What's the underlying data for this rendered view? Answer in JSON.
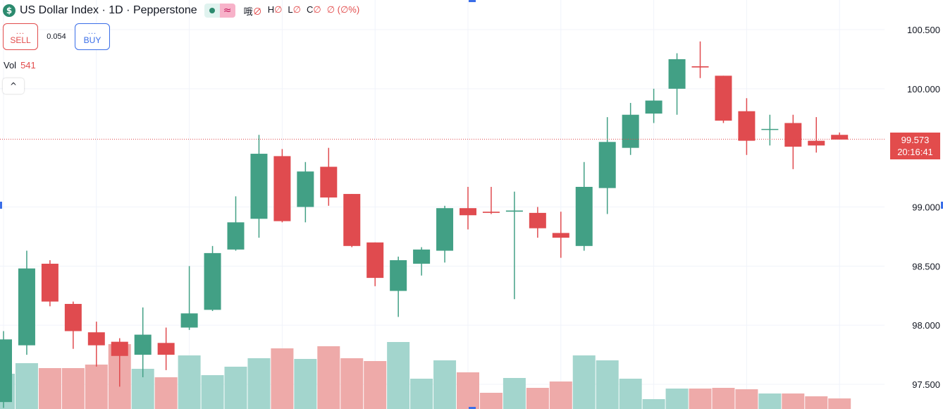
{
  "legend": {
    "symbol_icon": "$",
    "title": "US Dollar Index · 1D · Pepperstone",
    "delayed_icon": "≈",
    "ohlc": {
      "o_label": "哦",
      "h_label": "H",
      "l_label": "L",
      "c_label": "C",
      "o_value": "∅",
      "h_value": "∅",
      "l_value": "∅",
      "c_value": "∅",
      "change": "∅ (∅%)"
    }
  },
  "trade": {
    "sell_label": "SELL",
    "buy_label": "BUY",
    "dots": "...",
    "spread": "0.054"
  },
  "volume": {
    "label": "Vol",
    "value": "541"
  },
  "collapse_icon": "^",
  "last_price": {
    "price": "99.573",
    "countdown": "20:16:41"
  },
  "colors": {
    "up": "#42a085",
    "down": "#e04b4f",
    "up_vol": "#a3d5cd",
    "down_vol": "#eeaaa9",
    "axis_text": "#131722",
    "grid": "#f0f3fa"
  },
  "chart_data": {
    "type": "candlestick",
    "yaxis_ticks": [
      "97.500",
      "98.000",
      "98.500",
      "99.000",
      "100.000",
      "100.500"
    ],
    "ylim": [
      97.4,
      100.6
    ],
    "last_price_line": 99.573,
    "candles": [
      {
        "o": 97.35,
        "h": 97.95,
        "l": 97.3,
        "c": 97.88
      },
      {
        "o": 97.83,
        "h": 98.63,
        "l": 97.75,
        "c": 98.48
      },
      {
        "o": 98.52,
        "h": 98.55,
        "l": 98.16,
        "c": 98.2
      },
      {
        "o": 98.18,
        "h": 98.2,
        "l": 97.8,
        "c": 97.95
      },
      {
        "o": 97.94,
        "h": 98.03,
        "l": 97.65,
        "c": 97.83
      },
      {
        "o": 97.86,
        "h": 97.89,
        "l": 97.48,
        "c": 97.74
      },
      {
        "o": 97.75,
        "h": 98.15,
        "l": 97.56,
        "c": 97.92
      },
      {
        "o": 97.85,
        "h": 97.98,
        "l": 97.62,
        "c": 97.75
      },
      {
        "o": 97.98,
        "h": 98.5,
        "l": 97.96,
        "c": 98.1
      },
      {
        "o": 98.13,
        "h": 98.67,
        "l": 98.12,
        "c": 98.61
      },
      {
        "o": 98.64,
        "h": 99.09,
        "l": 98.63,
        "c": 98.87
      },
      {
        "o": 98.9,
        "h": 99.61,
        "l": 98.74,
        "c": 99.45
      },
      {
        "o": 99.43,
        "h": 99.49,
        "l": 98.87,
        "c": 98.88
      },
      {
        "o": 99.0,
        "h": 99.38,
        "l": 98.87,
        "c": 99.3
      },
      {
        "o": 99.34,
        "h": 99.5,
        "l": 99.01,
        "c": 99.08
      },
      {
        "o": 99.11,
        "h": 99.11,
        "l": 98.66,
        "c": 98.67
      },
      {
        "o": 98.7,
        "h": 98.7,
        "l": 98.33,
        "c": 98.4
      },
      {
        "o": 98.29,
        "h": 98.58,
        "l": 98.07,
        "c": 98.55
      },
      {
        "o": 98.52,
        "h": 98.66,
        "l": 98.42,
        "c": 98.64
      },
      {
        "o": 98.63,
        "h": 99.01,
        "l": 98.53,
        "c": 98.99
      },
      {
        "o": 98.99,
        "h": 99.17,
        "l": 98.81,
        "c": 98.93
      },
      {
        "o": 98.96,
        "h": 99.17,
        "l": 98.94,
        "c": 98.95
      },
      {
        "o": 98.96,
        "h": 99.13,
        "l": 98.22,
        "c": 98.97
      },
      {
        "o": 98.95,
        "h": 99.0,
        "l": 98.74,
        "c": 98.82
      },
      {
        "o": 98.78,
        "h": 98.96,
        "l": 98.57,
        "c": 98.74
      },
      {
        "o": 98.67,
        "h": 99.38,
        "l": 98.63,
        "c": 99.17
      },
      {
        "o": 99.16,
        "h": 99.76,
        "l": 98.94,
        "c": 99.55
      },
      {
        "o": 99.5,
        "h": 99.88,
        "l": 99.44,
        "c": 99.78
      },
      {
        "o": 99.79,
        "h": 100.0,
        "l": 99.71,
        "c": 99.9
      },
      {
        "o": 100.0,
        "h": 100.3,
        "l": 99.78,
        "c": 100.25
      },
      {
        "o": 100.19,
        "h": 100.4,
        "l": 100.09,
        "c": 100.18
      },
      {
        "o": 100.11,
        "h": 100.11,
        "l": 99.71,
        "c": 99.73
      },
      {
        "o": 99.81,
        "h": 99.92,
        "l": 99.44,
        "c": 99.56
      },
      {
        "o": 99.66,
        "h": 99.78,
        "l": 99.52,
        "c": 99.66
      },
      {
        "o": 99.71,
        "h": 99.78,
        "l": 99.32,
        "c": 99.51
      },
      {
        "o": 99.56,
        "h": 99.76,
        "l": 99.46,
        "c": 99.52
      },
      {
        "o": 99.61,
        "h": 99.63,
        "l": 99.57,
        "c": 99.57
      }
    ],
    "volumes": [
      0.5,
      0.65,
      0.58,
      0.58,
      0.63,
      0.92,
      0.57,
      0.45,
      0.76,
      0.48,
      0.6,
      0.72,
      0.86,
      0.71,
      0.89,
      0.72,
      0.68,
      0.95,
      0.43,
      0.69,
      0.52,
      0.23,
      0.44,
      0.3,
      0.39,
      0.76,
      0.69,
      0.43,
      0.14,
      0.29,
      0.29,
      0.3,
      0.28,
      0.22,
      0.22,
      0.18,
      0.15
    ]
  }
}
